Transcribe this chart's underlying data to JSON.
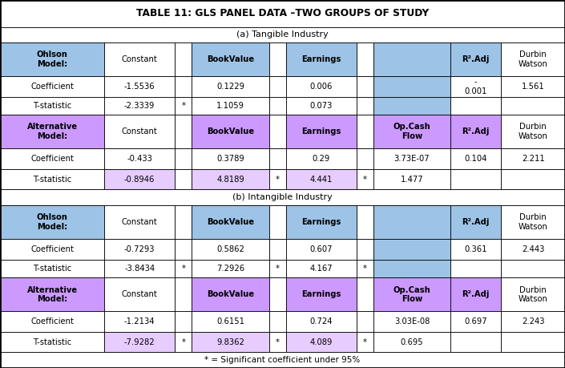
{
  "title": "TABLE 11: GLS PANEL DATA –TWO GROUPS OF STUDY",
  "subtitle_a": "(a) Tangible Industry",
  "subtitle_b": "(b) Intangible Industry",
  "footer": "* = Significant coefficient under 95%",
  "blue_h": "#9dc3e6",
  "purple_h": "#cc99ff",
  "purple_d": "#e6ccff",
  "white": "#ffffff",
  "col_ratios": [
    0.155,
    0.105,
    0.025,
    0.115,
    0.025,
    0.105,
    0.025,
    0.115,
    0.075,
    0.095
  ],
  "row_ratios": [
    0.068,
    0.038,
    0.085,
    0.052,
    0.045,
    0.085,
    0.052,
    0.05,
    0.04,
    0.085,
    0.052,
    0.045,
    0.085,
    0.052,
    0.05,
    0.04
  ]
}
